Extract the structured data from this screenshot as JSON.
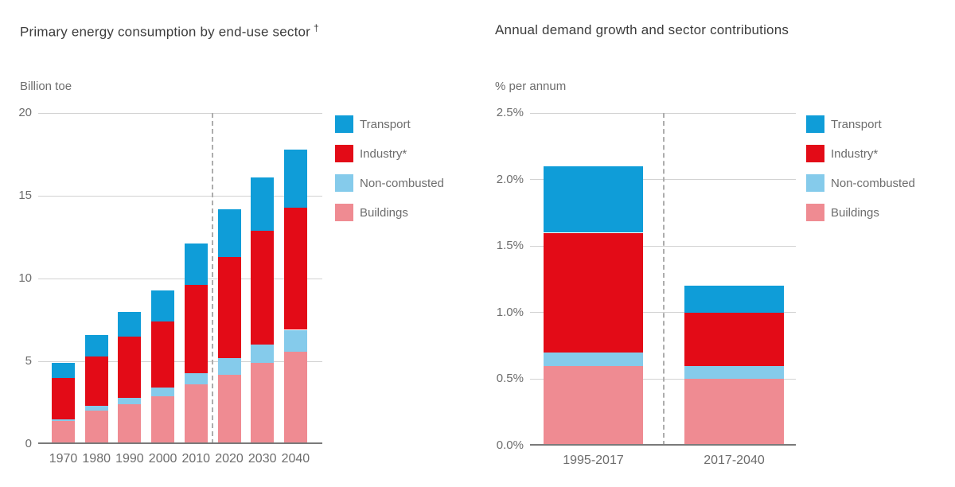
{
  "colors": {
    "transport": "#0f9dd8",
    "industry": "#e30b17",
    "non_combusted": "#85cbeb",
    "buildings": "#ef8b92",
    "grid": "#d2d2d2",
    "axis": "#7a7a7a",
    "divider": "#adadad",
    "title_text": "#3d3d3d",
    "label_text": "#6d6d6d"
  },
  "chart_data": [
    {
      "type": "bar",
      "stacked": true,
      "title": "Primary energy consumption by end-use sector",
      "title_superscript": "†",
      "ylabel": "Billion toe",
      "xlabel": "",
      "categories": [
        "1970",
        "1980",
        "1990",
        "2000",
        "2010",
        "2020",
        "2030",
        "2040"
      ],
      "series": [
        {
          "name": "Buildings",
          "color": "#ef8b92",
          "values": [
            1.4,
            2.0,
            2.4,
            2.9,
            3.6,
            4.2,
            4.9,
            5.6
          ]
        },
        {
          "name": "Non-combusted",
          "color": "#85cbeb",
          "values": [
            0.1,
            0.3,
            0.4,
            0.5,
            0.7,
            1.0,
            1.1,
            1.3
          ]
        },
        {
          "name": "Industry*",
          "color": "#e30b17",
          "values": [
            2.5,
            3.0,
            3.7,
            4.0,
            5.3,
            6.1,
            6.9,
            7.4
          ]
        },
        {
          "name": "Transport",
          "color": "#0f9dd8",
          "values": [
            0.9,
            1.3,
            1.5,
            1.9,
            2.5,
            2.9,
            3.2,
            3.5
          ]
        }
      ],
      "totals": [
        4.9,
        6.6,
        8.0,
        9.3,
        12.1,
        14.2,
        16.1,
        17.8
      ],
      "ylim": [
        0,
        20
      ],
      "y_ticks": [
        {
          "v": 20,
          "label": "20"
        },
        {
          "v": 15,
          "label": "15"
        },
        {
          "v": 10,
          "label": "10"
        },
        {
          "v": 5,
          "label": "5"
        },
        {
          "v": 0,
          "label": "0"
        }
      ],
      "grid": true,
      "legend_position": "right",
      "legend_order": [
        "Transport",
        "Industry*",
        "Non-combusted",
        "Buildings"
      ],
      "divider_after_index": 4,
      "divider_meaning": "history-projection boundary between 2010 and 2020"
    },
    {
      "type": "bar",
      "stacked": true,
      "title": "Annual demand growth and sector contributions",
      "title_superscript": "",
      "ylabel": "% per annum",
      "xlabel": "",
      "categories": [
        "1995-2017",
        "2017-2040"
      ],
      "series": [
        {
          "name": "Buildings",
          "color": "#ef8b92",
          "values": [
            0.6,
            0.5
          ]
        },
        {
          "name": "Non-combusted",
          "color": "#85cbeb",
          "values": [
            0.1,
            0.1
          ]
        },
        {
          "name": "Industry*",
          "color": "#e30b17",
          "values": [
            0.9,
            0.4
          ]
        },
        {
          "name": "Transport",
          "color": "#0f9dd8",
          "values": [
            0.5,
            0.2
          ]
        }
      ],
      "totals": [
        2.1,
        1.2
      ],
      "ylim": [
        0,
        2.5
      ],
      "y_ticks": [
        {
          "v": 2.5,
          "label": "2.5%"
        },
        {
          "v": 2.0,
          "label": "2.0%"
        },
        {
          "v": 1.5,
          "label": "1.5%"
        },
        {
          "v": 1.0,
          "label": "1.0%"
        },
        {
          "v": 0.5,
          "label": "0.5%"
        },
        {
          "v": 0.0,
          "label": "0.0%"
        }
      ],
      "grid": true,
      "legend_position": "right",
      "legend_order": [
        "Transport",
        "Industry*",
        "Non-combusted",
        "Buildings"
      ],
      "divider_after_index": 0,
      "divider_meaning": "history-projection boundary between periods"
    }
  ]
}
